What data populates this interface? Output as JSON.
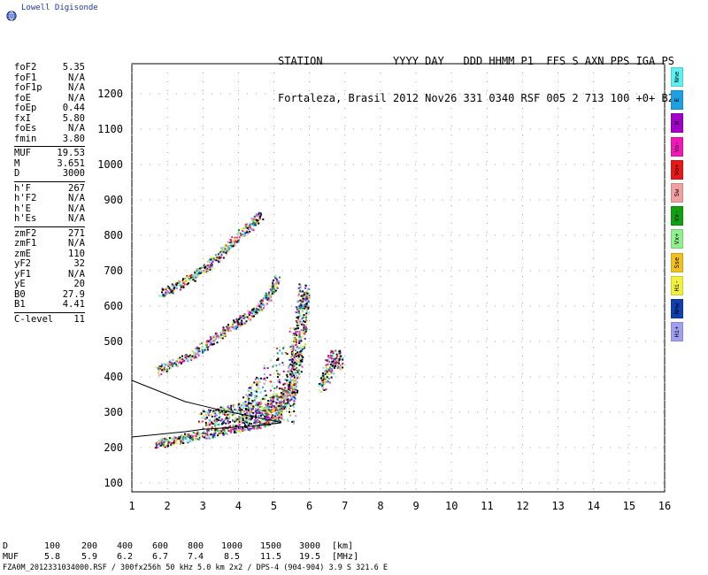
{
  "brand": "Lowell Digisonde",
  "header": {
    "line1": "STATION           YYYY DAY   DDD HHMM P1  FFS S AXN PPS IGA PS",
    "line2": "Fortaleza, Brasil 2012 Nov26 331 0340 RSF 005 2 713 100 +0+ B2"
  },
  "params_groups": [
    [
      {
        "label": "foF2",
        "value": "5.35"
      },
      {
        "label": "foF1",
        "value": "N/A"
      },
      {
        "label": "foF1p",
        "value": "N/A"
      },
      {
        "label": "foE",
        "value": "N/A"
      },
      {
        "label": "foEp",
        "value": "0.44"
      },
      {
        "label": "fxI",
        "value": "5.80"
      },
      {
        "label": "foEs",
        "value": "N/A"
      },
      {
        "label": "fmin",
        "value": "3.80"
      }
    ],
    [
      {
        "label": "MUF",
        "value": "19.53"
      },
      {
        "label": "M",
        "value": "3.651"
      },
      {
        "label": "D",
        "value": "3000"
      }
    ],
    [
      {
        "label": "h'F",
        "value": "267"
      },
      {
        "label": "h'F2",
        "value": "N/A"
      },
      {
        "label": "h'E",
        "value": "N/A"
      },
      {
        "label": "h'Es",
        "value": "N/A"
      }
    ],
    [
      {
        "label": "zmF2",
        "value": "271"
      },
      {
        "label": "zmF1",
        "value": "N/A"
      },
      {
        "label": "zmE",
        "value": "110"
      },
      {
        "label": "yF2",
        "value": "32"
      },
      {
        "label": "yF1",
        "value": "N/A"
      },
      {
        "label": "yE",
        "value": "20"
      },
      {
        "label": "B0",
        "value": "27.9"
      },
      {
        "label": "B1",
        "value": "4.41"
      }
    ],
    [
      {
        "label": "C-level",
        "value": "11"
      }
    ]
  ],
  "legend": [
    {
      "label": "Nne",
      "color": "#5ef0f0"
    },
    {
      "label": "E",
      "color": "#1fa0e0"
    },
    {
      "label": "W",
      "color": "#a000c8"
    },
    {
      "label": "Vo-",
      "color": "#f018b8"
    },
    {
      "label": "Vo+",
      "color": "#e81818"
    },
    {
      "label": "Sw",
      "color": "#f0a0a0"
    },
    {
      "label": "Vx-",
      "color": "#10a010"
    },
    {
      "label": "Vx+",
      "color": "#90f090"
    },
    {
      "label": "Sse",
      "color": "#f0c020"
    },
    {
      "label": "Hi-",
      "color": "#f0f040"
    },
    {
      "label": "Nnw",
      "color": "#1040b0"
    },
    {
      "label": "Hi+",
      "color": "#a0a0f0"
    }
  ],
  "dmuf": {
    "d_label": "D",
    "d_values": [
      "100",
      "200",
      "400",
      "600",
      "800",
      "1000",
      "1500",
      "3000"
    ],
    "d_unit": "[km]",
    "muf_label": "MUF",
    "muf_values": [
      "5.8",
      "5.9",
      "6.2",
      "6.7",
      "7.4",
      "8.5",
      "11.5",
      "19.5"
    ],
    "muf_unit": "[MHz]"
  },
  "footer": "FZA0M_2012331034000.RSF / 300fx256h 50 kHz 5.0 km 2x2 / DPS-4 (904-904)   3.9 S 321.6 E",
  "chart_data": {
    "type": "scatter",
    "xlim": [
      1,
      16
    ],
    "ylim": [
      75,
      1285
    ],
    "x_ticks": [
      1,
      2,
      3,
      4,
      5,
      6,
      7,
      8,
      9,
      10,
      11,
      12,
      13,
      14,
      15,
      16
    ],
    "y_ticks": [
      100,
      200,
      300,
      400,
      500,
      600,
      700,
      800,
      900,
      1000,
      1100,
      1200
    ],
    "grid": true,
    "echo_traces": [
      {
        "name": "F1-low",
        "points": [
          [
            1.7,
            212
          ],
          [
            2.0,
            218
          ],
          [
            2.5,
            228
          ],
          [
            3.0,
            238
          ],
          [
            3.5,
            248
          ],
          [
            4.0,
            258
          ],
          [
            4.5,
            268
          ],
          [
            4.9,
            278
          ],
          [
            5.2,
            292
          ]
        ]
      },
      {
        "name": "F-cusp",
        "points": [
          [
            3.0,
            280
          ],
          [
            3.5,
            290
          ],
          [
            4.0,
            300
          ],
          [
            4.5,
            310
          ],
          [
            5.0,
            320
          ],
          [
            5.3,
            340
          ],
          [
            5.5,
            380
          ],
          [
            5.6,
            450
          ],
          [
            5.7,
            520
          ],
          [
            5.8,
            600
          ],
          [
            5.85,
            650
          ]
        ]
      },
      {
        "name": "F2-second",
        "points": [
          [
            1.7,
            420
          ],
          [
            2.2,
            440
          ],
          [
            2.8,
            470
          ],
          [
            3.3,
            510
          ],
          [
            3.8,
            545
          ],
          [
            4.2,
            570
          ],
          [
            4.6,
            600
          ],
          [
            4.9,
            640
          ],
          [
            5.1,
            680
          ]
        ]
      },
      {
        "name": "F2-third",
        "points": [
          [
            1.8,
            640
          ],
          [
            2.3,
            660
          ],
          [
            2.8,
            690
          ],
          [
            3.2,
            720
          ],
          [
            3.6,
            760
          ],
          [
            4.0,
            800
          ],
          [
            4.4,
            835
          ],
          [
            4.6,
            860
          ]
        ]
      },
      {
        "name": "spread-high",
        "points": [
          [
            6.3,
            380
          ],
          [
            6.5,
            420
          ],
          [
            6.7,
            460
          ],
          [
            6.8,
            440
          ]
        ]
      }
    ],
    "model_profile": [
      [
        1.0,
        390
      ],
      [
        1.5,
        370
      ],
      [
        2.0,
        350
      ],
      [
        2.5,
        330
      ],
      [
        3.0,
        318
      ],
      [
        3.5,
        306
      ],
      [
        4.0,
        296
      ],
      [
        4.5,
        286
      ],
      [
        5.0,
        276
      ],
      [
        5.2,
        270
      ],
      [
        4.5,
        262
      ],
      [
        4.0,
        258
      ],
      [
        3.5,
        255
      ],
      [
        3.0,
        252
      ],
      [
        2.5,
        245
      ],
      [
        2.0,
        240
      ],
      [
        1.5,
        235
      ],
      [
        1.0,
        230
      ]
    ]
  }
}
